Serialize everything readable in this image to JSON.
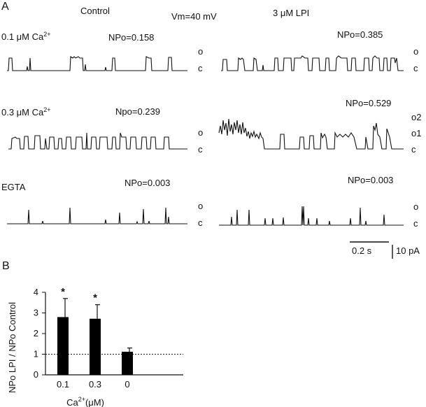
{
  "panel_a": {
    "label": "A",
    "control_label": "Control",
    "vm_label": "Vm=40 mV",
    "lpi_label": "3 μM LPI",
    "rows": [
      {
        "condition": "0.1  μM Ca",
        "condition_sup": "2+",
        "npo_control": "NPo=0.158",
        "npo_lpi": "NPo=0.385",
        "levels_control": [
          "o",
          "c"
        ],
        "levels_lpi": [
          "o",
          "c"
        ]
      },
      {
        "condition": "0.3  μM Ca",
        "condition_sup": "2+",
        "npo_control": "Npo=0.239",
        "npo_lpi": "NPo=0.529",
        "levels_control": [
          "o",
          "c"
        ],
        "levels_lpi": [
          "o2",
          "o1",
          "c"
        ]
      },
      {
        "condition": "EGTA",
        "condition_sup": "",
        "npo_control": "NPo=0.003",
        "npo_lpi": "NPo=0.003",
        "levels_control": [
          "o",
          "c"
        ],
        "levels_lpi": [
          "o",
          "c"
        ]
      }
    ],
    "scale_time": "0.2 s",
    "scale_current": "10 pA"
  },
  "chart_data": {
    "type": "bar",
    "panel_label": "B",
    "categories": [
      "0.1",
      "0.3",
      "0"
    ],
    "values": [
      2.8,
      2.72,
      1.12
    ],
    "errors": [
      0.9,
      0.68,
      0.18
    ],
    "significance": [
      "*",
      "*",
      ""
    ],
    "ylim": [
      0,
      4
    ],
    "yticks": [
      0,
      1,
      2,
      3,
      4
    ],
    "reference_line": 1,
    "ylabel": "NPo LPI / NPo Control",
    "xlabel_main": "Ca",
    "xlabel_sup": "2+",
    "xlabel_unit": "(μM)",
    "bar_color": "#000000"
  }
}
